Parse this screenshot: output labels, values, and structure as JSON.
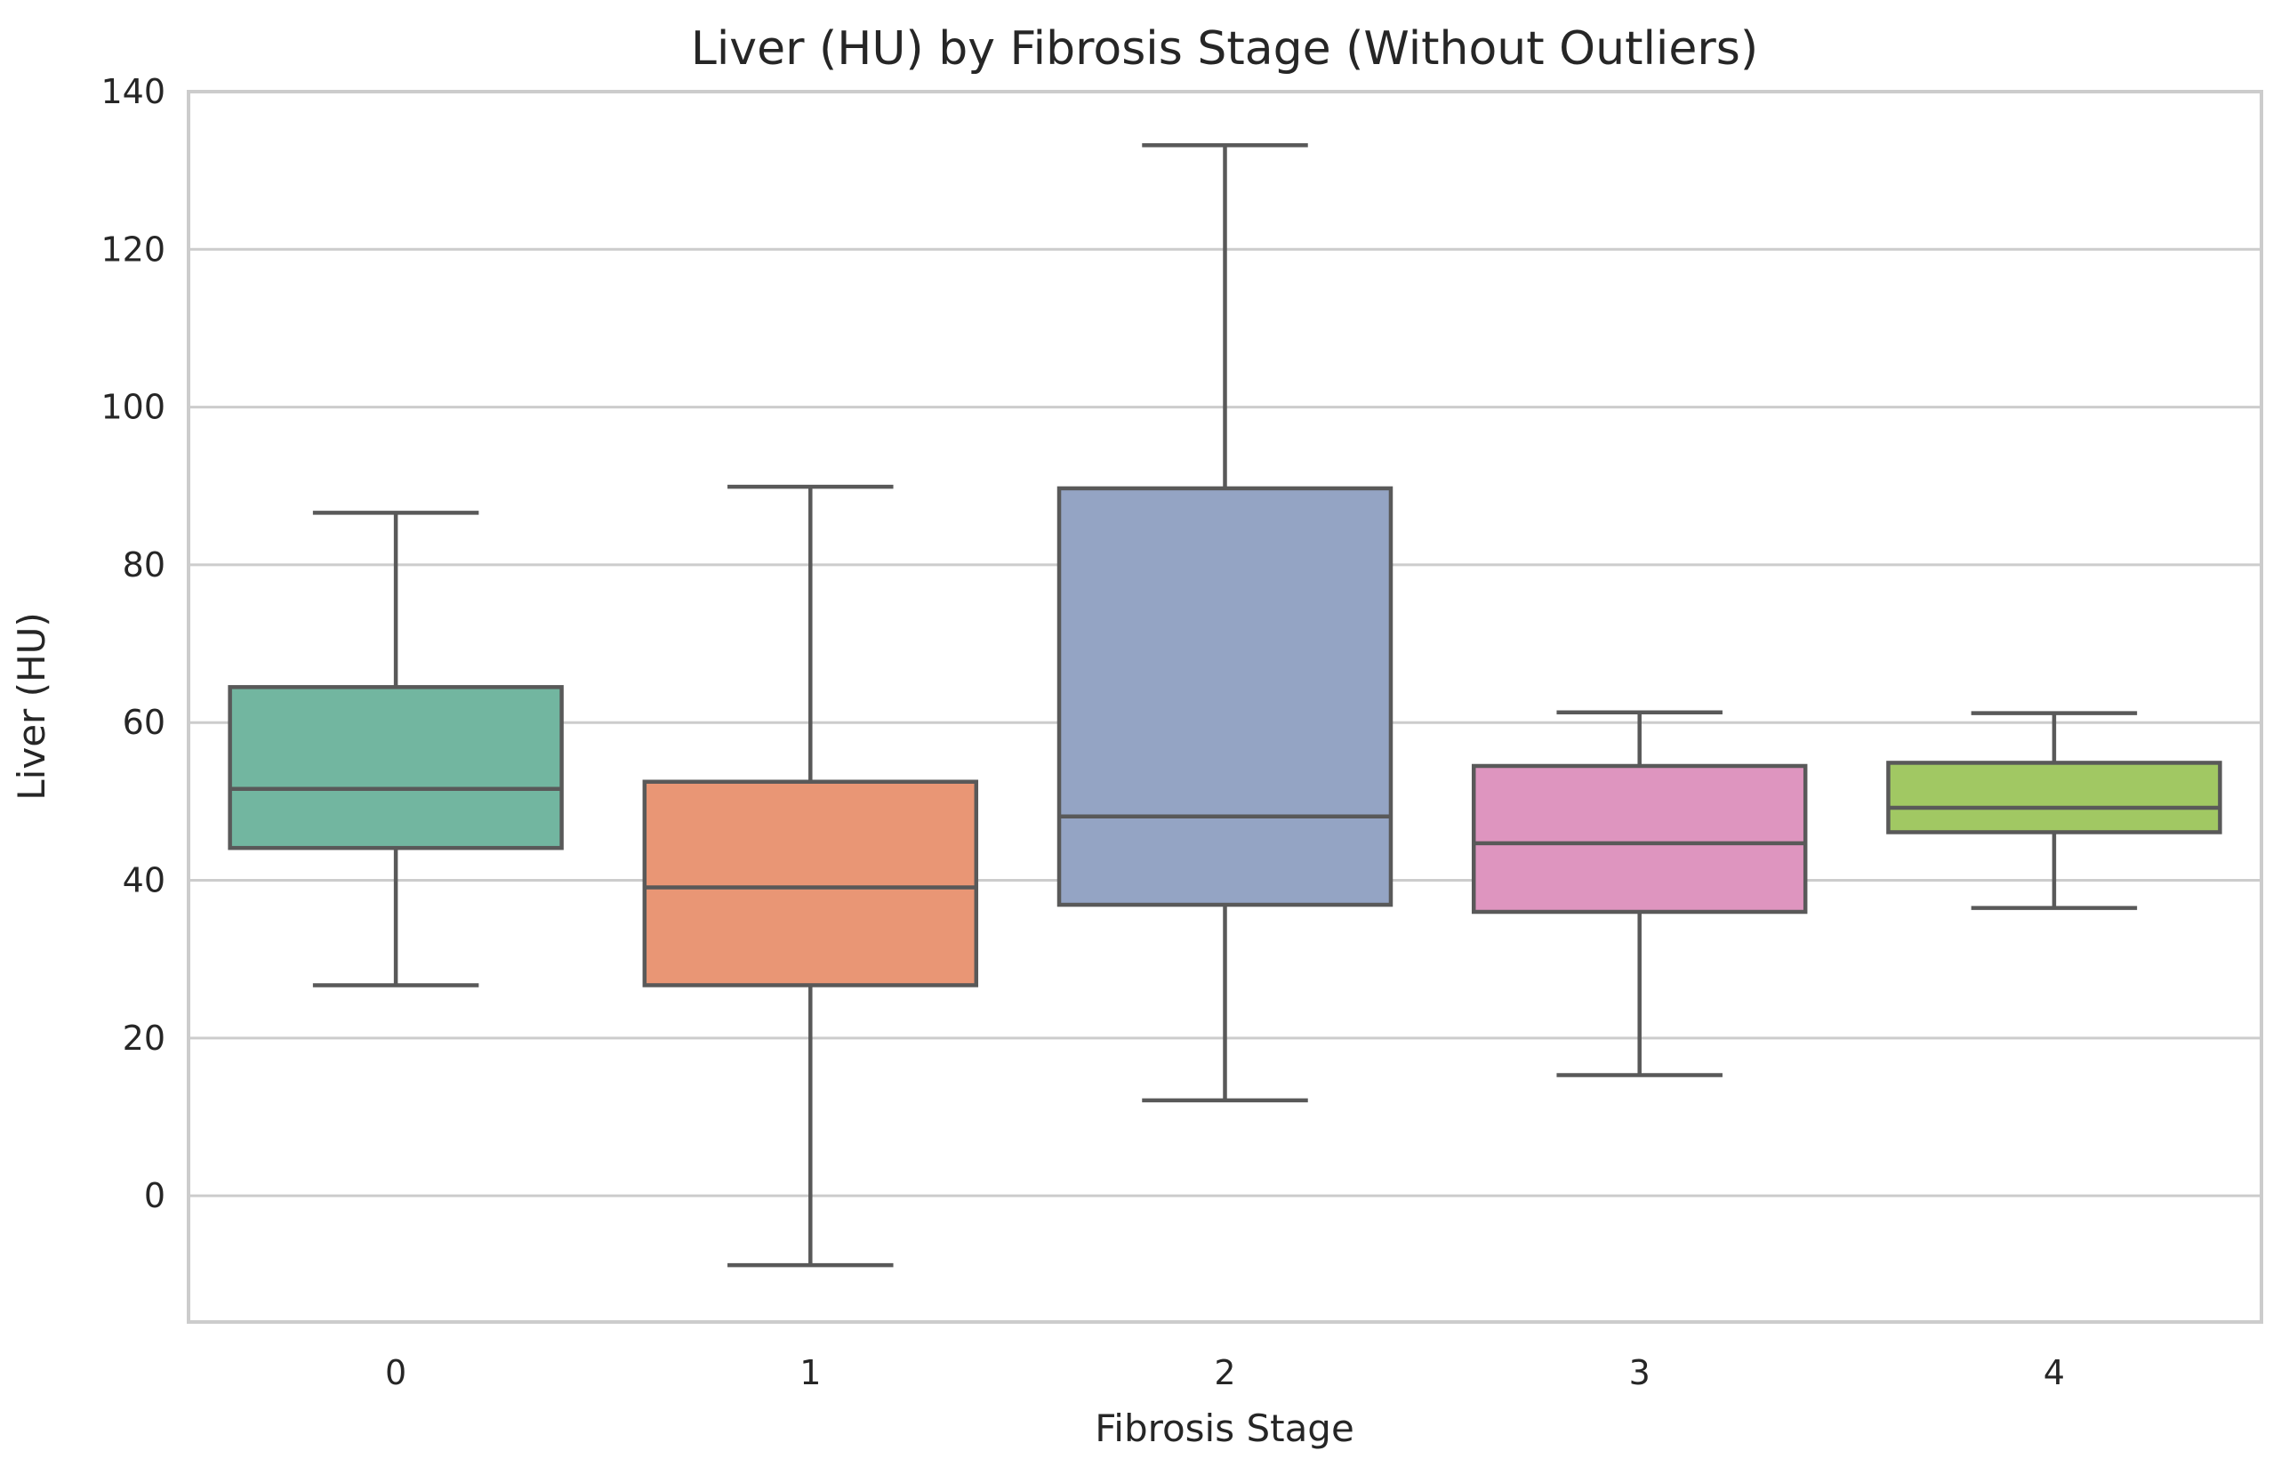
{
  "chart_data": {
    "type": "box",
    "title": "Liver (HU) by Fibrosis Stage (Without Outliers)",
    "xlabel": "Fibrosis Stage",
    "ylabel": "Liver (HU)",
    "ylim": [
      -16,
      140
    ],
    "yticks": [
      0,
      20,
      40,
      60,
      80,
      100,
      120,
      140
    ],
    "ytick_labels": [
      "0",
      "20",
      "40",
      "60",
      "80",
      "100",
      "120",
      "140"
    ],
    "grid": true,
    "categories": [
      "0",
      "1",
      "2",
      "3",
      "4"
    ],
    "boxes": [
      {
        "category": "0",
        "whisker_low": 26.7,
        "q1": 44.1,
        "median": 51.6,
        "q3": 64.5,
        "whisker_high": 86.6,
        "color": "#72b6a0"
      },
      {
        "category": "1",
        "whisker_low": -8.8,
        "q1": 26.7,
        "median": 39.1,
        "q3": 52.5,
        "whisker_high": 89.9,
        "color": "#e99675"
      },
      {
        "category": "2",
        "whisker_low": 12.1,
        "q1": 36.9,
        "median": 48.1,
        "q3": 89.7,
        "whisker_high": 133.2,
        "color": "#94a4c4"
      },
      {
        "category": "3",
        "whisker_low": 15.3,
        "q1": 36.0,
        "median": 44.7,
        "q3": 54.5,
        "whisker_high": 61.3,
        "color": "#de95bf"
      },
      {
        "category": "4",
        "whisker_low": 36.5,
        "q1": 46.1,
        "median": 49.2,
        "q3": 54.9,
        "whisker_high": 61.2,
        "color": "#a1c863"
      }
    ]
  },
  "style": {
    "line_color": "#595959",
    "grid_color": "#cccccc",
    "spine_color": "#cccccc"
  }
}
